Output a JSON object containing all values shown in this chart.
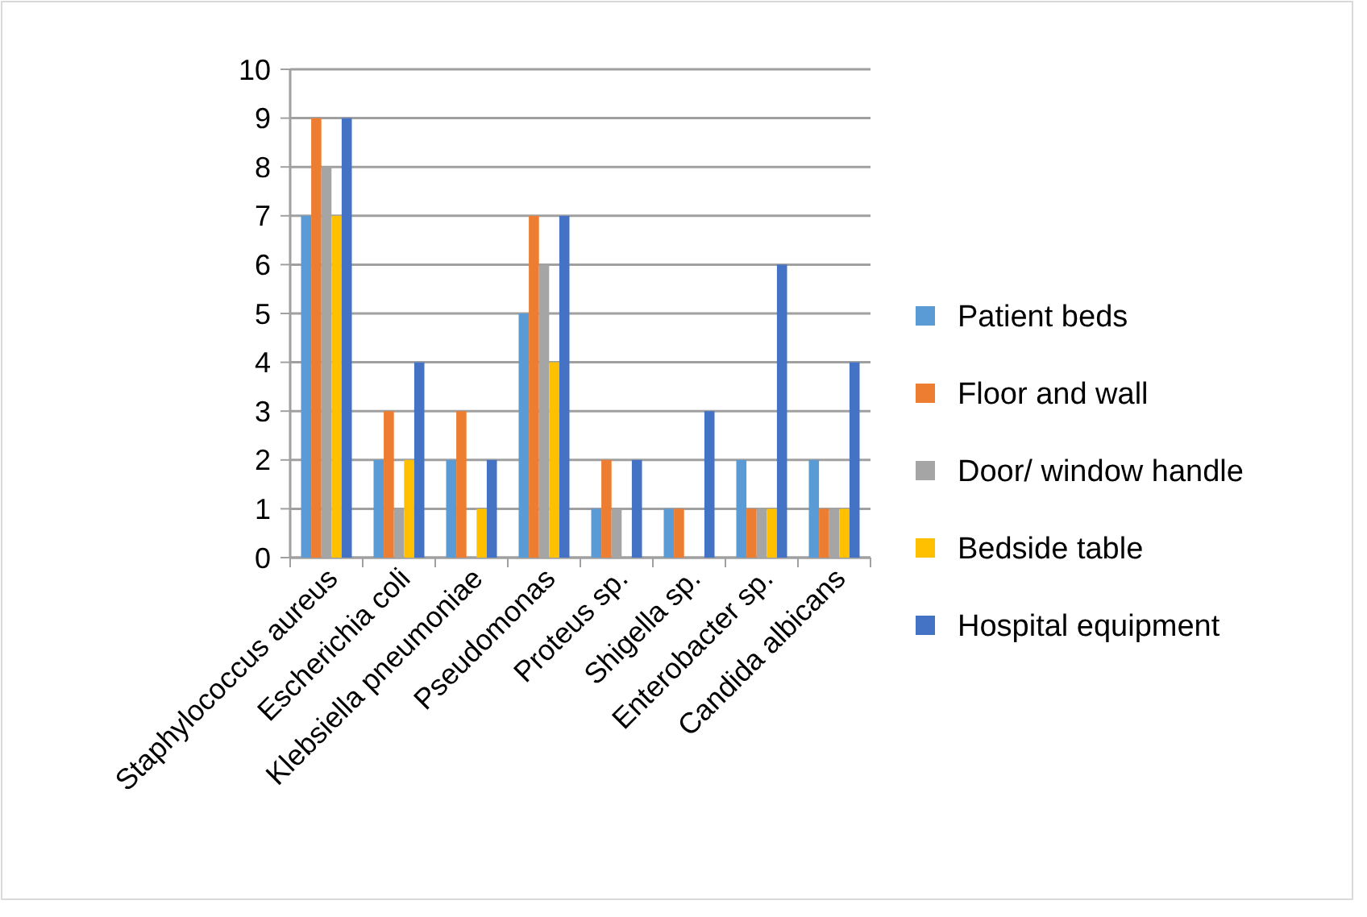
{
  "chart_data": {
    "type": "bar",
    "categories": [
      "Staphylococcus aureus",
      "Escherichia coli",
      "Klebsiella pneumoniae",
      "Pseudomonas",
      "Proteus sp.",
      "Shigella sp.",
      "Enterobacter sp.",
      "Candida albicans"
    ],
    "series": [
      {
        "name": "Patient beds",
        "color": "#5b9bd5",
        "values": [
          7,
          2,
          2,
          5,
          1,
          1,
          2,
          2
        ]
      },
      {
        "name": "Floor and wall",
        "color": "#ed7d31",
        "values": [
          9,
          3,
          3,
          7,
          2,
          1,
          1,
          1
        ]
      },
      {
        "name": "Door/ window handle",
        "color": "#a5a5a5",
        "values": [
          8,
          1,
          0,
          6,
          1,
          0,
          1,
          1
        ]
      },
      {
        "name": "Bedside table",
        "color": "#ffc000",
        "values": [
          7,
          2,
          1,
          4,
          0,
          0,
          1,
          1
        ]
      },
      {
        "name": "Hospital equipment",
        "color": "#4472c4",
        "values": [
          9,
          4,
          2,
          7,
          2,
          3,
          6,
          4
        ]
      }
    ],
    "ylim": [
      0,
      10
    ],
    "yticks": [
      0,
      1,
      2,
      3,
      4,
      5,
      6,
      7,
      8,
      9,
      10
    ],
    "grid": "y",
    "legend": "right"
  }
}
